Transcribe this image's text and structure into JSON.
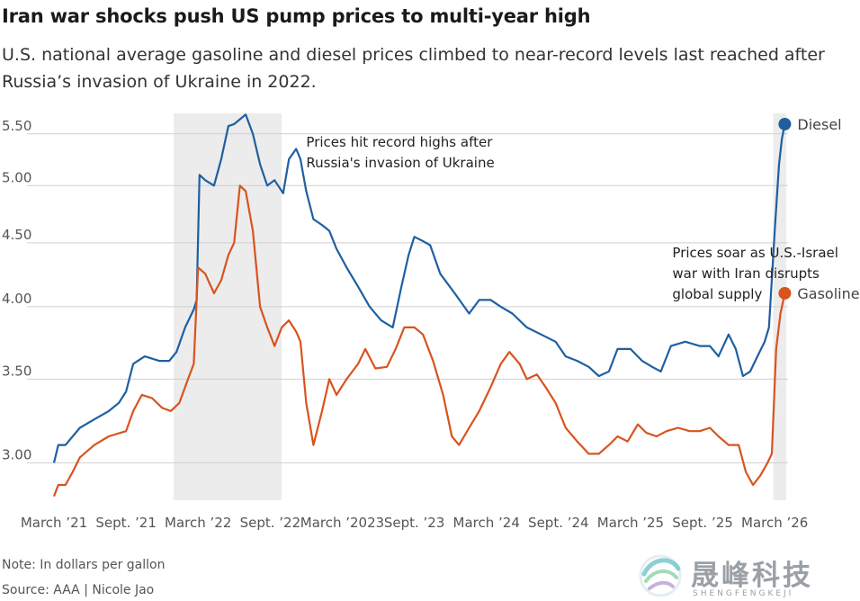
{
  "header": {
    "title": "Iran war shocks push US pump prices to multi-year high",
    "subtitle": "U.S. national average gasoline and diesel prices climbed to near-record levels last reached after Russia’s invasion of Ukraine in 2022."
  },
  "footer": {
    "note": "Note: In dollars per gallon",
    "source": "Source: AAA | Nicole Jao"
  },
  "watermark": {
    "name": "晟峰科技",
    "pinyin": "SHENGFENGKEJI"
  },
  "chart_data": {
    "type": "line",
    "title": "Iran war shocks push US pump prices to multi-year high",
    "xlabel": "",
    "ylabel": "In dollars per gallon",
    "x_range": [
      2021.17,
      2026.25
    ],
    "ylim": [
      2.8,
      5.75
    ],
    "y_scale": "log",
    "grid": true,
    "y_ticks": [
      3.0,
      3.5,
      4.0,
      4.5,
      5.0,
      5.5
    ],
    "y_tick_labels": [
      "3.00",
      "3.50",
      "4.00",
      "4.50",
      "5.00",
      "5.50"
    ],
    "x_ticks": [
      {
        "t": 2021.17,
        "label": "March ’21"
      },
      {
        "t": 2021.67,
        "label": "Sept. ’21"
      },
      {
        "t": 2022.17,
        "label": "March ’22"
      },
      {
        "t": 2022.67,
        "label": "Sept. ’22"
      },
      {
        "t": 2023.17,
        "label": "March ’2023"
      },
      {
        "t": 2023.67,
        "label": "Sept. ’23"
      },
      {
        "t": 2024.17,
        "label": "March ’24"
      },
      {
        "t": 2024.67,
        "label": "Sept. ’24"
      },
      {
        "t": 2025.17,
        "label": "March ’25"
      },
      {
        "t": 2025.67,
        "label": "Sept. ’25"
      },
      {
        "t": 2026.17,
        "label": "March ’26"
      }
    ],
    "shaded_ranges": [
      {
        "from": 2022.0,
        "to": 2022.75
      },
      {
        "from": 2026.16,
        "to": 2026.25
      }
    ],
    "series": [
      {
        "name": "Diesel",
        "color": "#1f5fa0",
        "points": [
          [
            2021.17,
            3.0
          ],
          [
            2021.2,
            3.1
          ],
          [
            2021.25,
            3.1
          ],
          [
            2021.35,
            3.2
          ],
          [
            2021.45,
            3.25
          ],
          [
            2021.55,
            3.3
          ],
          [
            2021.62,
            3.35
          ],
          [
            2021.67,
            3.42
          ],
          [
            2021.72,
            3.6
          ],
          [
            2021.8,
            3.65
          ],
          [
            2021.9,
            3.62
          ],
          [
            2021.97,
            3.62
          ],
          [
            2022.02,
            3.68
          ],
          [
            2022.08,
            3.85
          ],
          [
            2022.14,
            3.98
          ],
          [
            2022.16,
            4.05
          ],
          [
            2022.18,
            5.1
          ],
          [
            2022.22,
            5.05
          ],
          [
            2022.28,
            5.0
          ],
          [
            2022.33,
            5.25
          ],
          [
            2022.38,
            5.58
          ],
          [
            2022.42,
            5.6
          ],
          [
            2022.46,
            5.65
          ],
          [
            2022.5,
            5.7
          ],
          [
            2022.55,
            5.5
          ],
          [
            2022.6,
            5.2
          ],
          [
            2022.65,
            5.0
          ],
          [
            2022.7,
            5.05
          ],
          [
            2022.76,
            4.93
          ],
          [
            2022.8,
            5.25
          ],
          [
            2022.85,
            5.35
          ],
          [
            2022.88,
            5.25
          ],
          [
            2022.92,
            4.95
          ],
          [
            2022.97,
            4.7
          ],
          [
            2023.03,
            4.65
          ],
          [
            2023.08,
            4.6
          ],
          [
            2023.13,
            4.45
          ],
          [
            2023.2,
            4.3
          ],
          [
            2023.28,
            4.15
          ],
          [
            2023.36,
            4.0
          ],
          [
            2023.44,
            3.9
          ],
          [
            2023.52,
            3.85
          ],
          [
            2023.58,
            4.15
          ],
          [
            2023.63,
            4.4
          ],
          [
            2023.67,
            4.55
          ],
          [
            2023.72,
            4.52
          ],
          [
            2023.78,
            4.48
          ],
          [
            2023.85,
            4.25
          ],
          [
            2023.95,
            4.1
          ],
          [
            2024.05,
            3.95
          ],
          [
            2024.12,
            4.05
          ],
          [
            2024.2,
            4.05
          ],
          [
            2024.27,
            4.0
          ],
          [
            2024.35,
            3.95
          ],
          [
            2024.45,
            3.85
          ],
          [
            2024.55,
            3.8
          ],
          [
            2024.65,
            3.75
          ],
          [
            2024.72,
            3.65
          ],
          [
            2024.8,
            3.62
          ],
          [
            2024.88,
            3.58
          ],
          [
            2024.95,
            3.52
          ],
          [
            2025.02,
            3.55
          ],
          [
            2025.08,
            3.7
          ],
          [
            2025.17,
            3.7
          ],
          [
            2025.25,
            3.62
          ],
          [
            2025.32,
            3.58
          ],
          [
            2025.38,
            3.55
          ],
          [
            2025.45,
            3.72
          ],
          [
            2025.55,
            3.75
          ],
          [
            2025.65,
            3.72
          ],
          [
            2025.72,
            3.72
          ],
          [
            2025.78,
            3.65
          ],
          [
            2025.85,
            3.8
          ],
          [
            2025.9,
            3.7
          ],
          [
            2025.95,
            3.52
          ],
          [
            2026.0,
            3.55
          ],
          [
            2026.05,
            3.65
          ],
          [
            2026.1,
            3.75
          ],
          [
            2026.13,
            3.85
          ],
          [
            2026.17,
            4.6
          ],
          [
            2026.2,
            5.2
          ],
          [
            2026.22,
            5.45
          ],
          [
            2026.24,
            5.6
          ]
        ]
      },
      {
        "name": "Gasoline",
        "color": "#d9531e",
        "points": [
          [
            2021.17,
            2.82
          ],
          [
            2021.2,
            2.88
          ],
          [
            2021.25,
            2.88
          ],
          [
            2021.3,
            2.95
          ],
          [
            2021.35,
            3.03
          ],
          [
            2021.45,
            3.1
          ],
          [
            2021.55,
            3.15
          ],
          [
            2021.67,
            3.18
          ],
          [
            2021.72,
            3.3
          ],
          [
            2021.78,
            3.4
          ],
          [
            2021.85,
            3.38
          ],
          [
            2021.92,
            3.32
          ],
          [
            2021.98,
            3.3
          ],
          [
            2022.04,
            3.35
          ],
          [
            2022.1,
            3.5
          ],
          [
            2022.14,
            3.6
          ],
          [
            2022.17,
            4.3
          ],
          [
            2022.22,
            4.25
          ],
          [
            2022.28,
            4.1
          ],
          [
            2022.33,
            4.2
          ],
          [
            2022.38,
            4.4
          ],
          [
            2022.42,
            4.5
          ],
          [
            2022.46,
            5.0
          ],
          [
            2022.5,
            4.95
          ],
          [
            2022.55,
            4.6
          ],
          [
            2022.6,
            4.0
          ],
          [
            2022.65,
            3.85
          ],
          [
            2022.7,
            3.72
          ],
          [
            2022.75,
            3.85
          ],
          [
            2022.8,
            3.9
          ],
          [
            2022.85,
            3.82
          ],
          [
            2022.88,
            3.75
          ],
          [
            2022.92,
            3.35
          ],
          [
            2022.97,
            3.1
          ],
          [
            2023.03,
            3.3
          ],
          [
            2023.08,
            3.5
          ],
          [
            2023.13,
            3.4
          ],
          [
            2023.2,
            3.5
          ],
          [
            2023.28,
            3.6
          ],
          [
            2023.33,
            3.7
          ],
          [
            2023.4,
            3.57
          ],
          [
            2023.48,
            3.58
          ],
          [
            2023.54,
            3.7
          ],
          [
            2023.6,
            3.85
          ],
          [
            2023.67,
            3.85
          ],
          [
            2023.73,
            3.8
          ],
          [
            2023.8,
            3.62
          ],
          [
            2023.87,
            3.4
          ],
          [
            2023.93,
            3.15
          ],
          [
            2023.98,
            3.1
          ],
          [
            2024.05,
            3.2
          ],
          [
            2024.12,
            3.3
          ],
          [
            2024.2,
            3.45
          ],
          [
            2024.27,
            3.6
          ],
          [
            2024.33,
            3.68
          ],
          [
            2024.4,
            3.6
          ],
          [
            2024.45,
            3.5
          ],
          [
            2024.52,
            3.53
          ],
          [
            2024.58,
            3.45
          ],
          [
            2024.65,
            3.35
          ],
          [
            2024.72,
            3.2
          ],
          [
            2024.8,
            3.12
          ],
          [
            2024.88,
            3.05
          ],
          [
            2024.95,
            3.05
          ],
          [
            2025.02,
            3.1
          ],
          [
            2025.08,
            3.15
          ],
          [
            2025.15,
            3.12
          ],
          [
            2025.22,
            3.22
          ],
          [
            2025.28,
            3.17
          ],
          [
            2025.35,
            3.15
          ],
          [
            2025.42,
            3.18
          ],
          [
            2025.5,
            3.2
          ],
          [
            2025.58,
            3.18
          ],
          [
            2025.65,
            3.18
          ],
          [
            2025.72,
            3.2
          ],
          [
            2025.78,
            3.15
          ],
          [
            2025.85,
            3.1
          ],
          [
            2025.92,
            3.1
          ],
          [
            2025.97,
            2.95
          ],
          [
            2026.02,
            2.88
          ],
          [
            2026.07,
            2.93
          ],
          [
            2026.12,
            3.0
          ],
          [
            2026.15,
            3.05
          ],
          [
            2026.18,
            3.7
          ],
          [
            2026.21,
            3.95
          ],
          [
            2026.24,
            4.1
          ]
        ]
      }
    ],
    "annotations": [
      {
        "lines": [
          "Prices hit record highs after",
          "Russia's invasion of Ukraine"
        ],
        "t": 2022.92,
        "y": 5.37
      },
      {
        "lines": [
          "Prices soar as U.S.-Israel",
          "war with Iran disrupts",
          "global supply"
        ],
        "t": 2025.46,
        "y": 4.38
      }
    ]
  }
}
